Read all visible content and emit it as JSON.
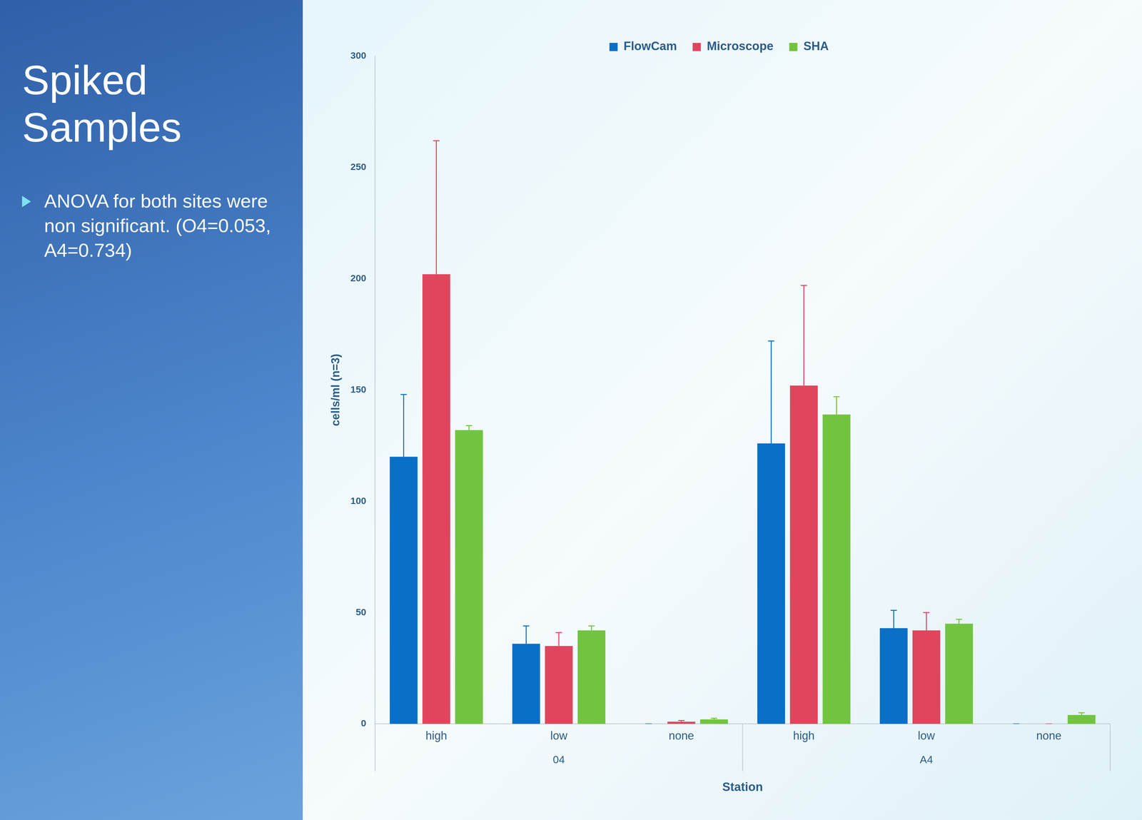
{
  "slide": {
    "title": "Spiked Samples",
    "bullets": [
      "ANOVA for both sites were non significant. (O4=0.053, A4=0.734)"
    ]
  },
  "chart_data": {
    "type": "bar",
    "categories": [
      "high",
      "low",
      "none",
      "high",
      "low",
      "none"
    ],
    "group_labels": [
      "04",
      "A4"
    ],
    "x_label": "Station",
    "y_label": "cells/ml (n=3)",
    "ylim": [
      0,
      300
    ],
    "yticks": [
      0,
      50,
      100,
      150,
      200,
      250,
      300
    ],
    "grid": false,
    "legend": "top",
    "series": [
      {
        "name": "FlowCam",
        "color": "#0a6fc7",
        "values": [
          120,
          36,
          0,
          126,
          43,
          0
        ],
        "errors": [
          28,
          8,
          0,
          46,
          8,
          0
        ]
      },
      {
        "name": "Microscope",
        "color": "#e0455e",
        "values": [
          202,
          35,
          1,
          152,
          42,
          0
        ],
        "errors": [
          60,
          6,
          0.5,
          45,
          8,
          0
        ]
      },
      {
        "name": "SHA",
        "color": "#72c440",
        "values": [
          132,
          42,
          2,
          139,
          45,
          4
        ],
        "errors": [
          2,
          2,
          0.5,
          8,
          2,
          1
        ]
      }
    ]
  }
}
